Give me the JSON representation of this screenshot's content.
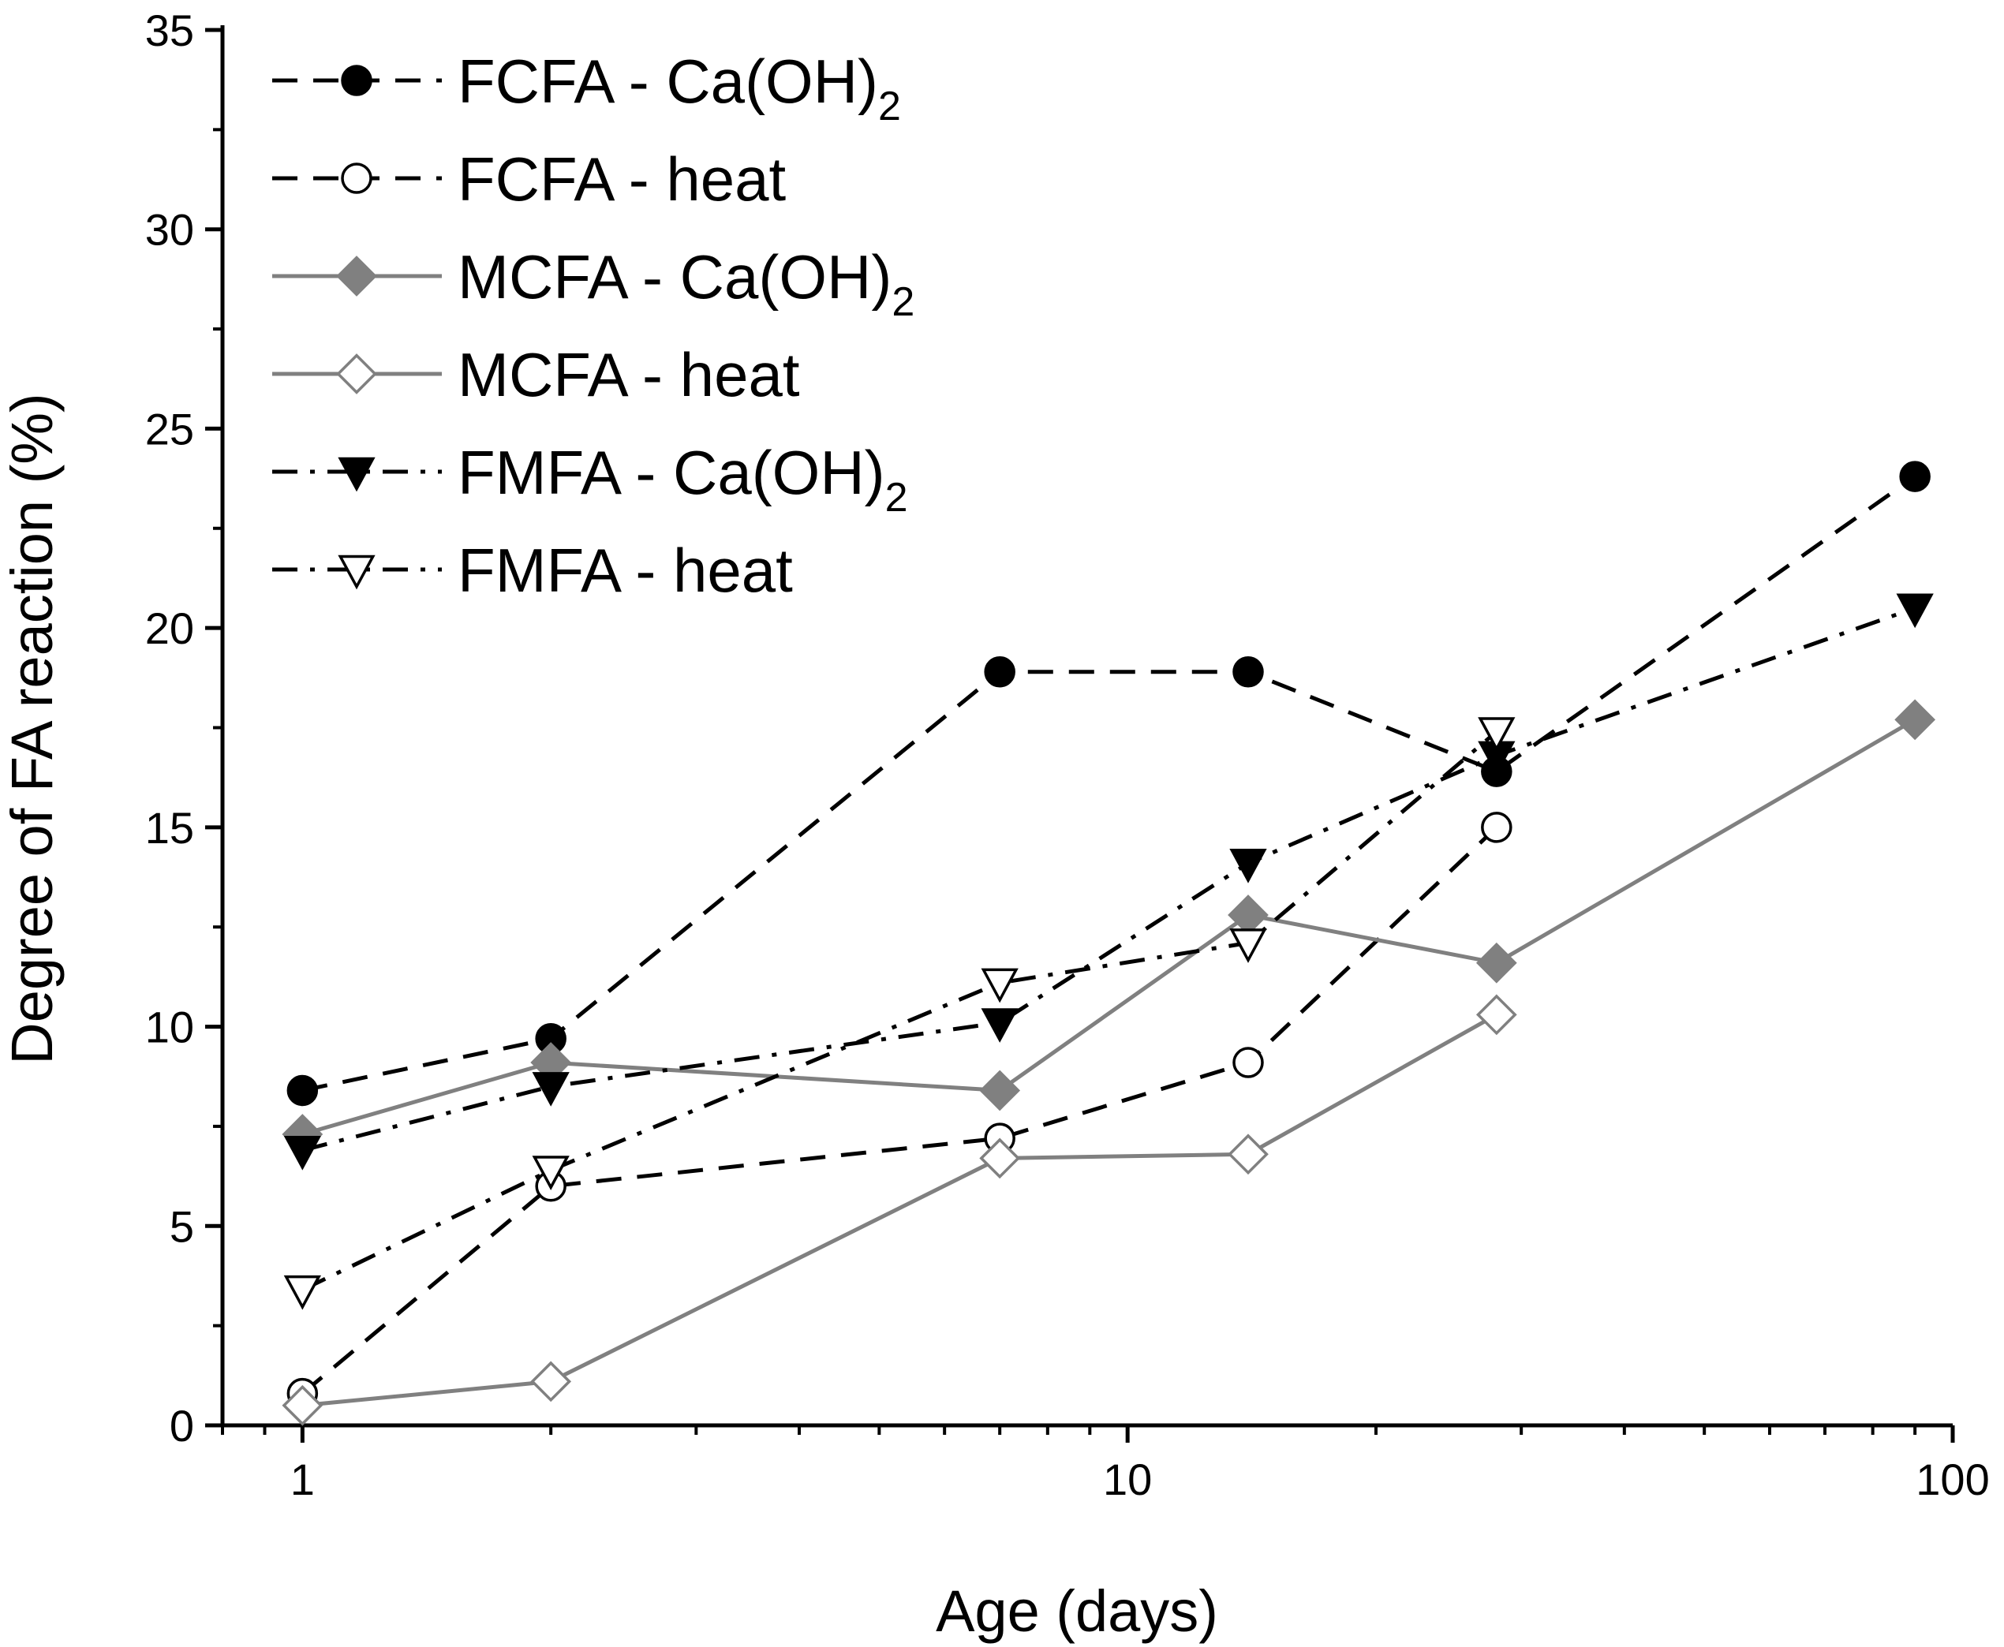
{
  "chart_data": {
    "type": "line",
    "title": "",
    "xlabel": "Age (days)",
    "ylabel": "Degree of FA reaction (%)",
    "xscale": "log",
    "xlim": [
      0.8,
      100
    ],
    "ylim": [
      0,
      35
    ],
    "xticks": [
      1,
      10,
      100
    ],
    "xtick_labels": [
      "1",
      "10",
      "100"
    ],
    "yticks": [
      0,
      5,
      10,
      15,
      20,
      25,
      30,
      35
    ],
    "ytick_labels": [
      "0",
      "5",
      "10",
      "15",
      "20",
      "25",
      "30",
      "35"
    ],
    "grid": false,
    "legend_position": "top-left",
    "series": [
      {
        "name": "FCFA - Ca(OH)2",
        "label_main": "FCFA - Ca(OH)",
        "label_sub": "2",
        "color": "#000000",
        "line": "dashed",
        "marker": "circle",
        "filled": true,
        "x": [
          1,
          2,
          7,
          14,
          28,
          90
        ],
        "y": [
          8.4,
          9.7,
          18.9,
          18.9,
          16.4,
          23.8
        ]
      },
      {
        "name": "FCFA - heat",
        "label_main": "FCFA - heat",
        "label_sub": "",
        "color": "#000000",
        "line": "dashed",
        "marker": "circle",
        "filled": false,
        "x": [
          1,
          2,
          7,
          14,
          28
        ],
        "y": [
          0.8,
          6.0,
          7.2,
          9.1,
          15.0
        ]
      },
      {
        "name": "MCFA - Ca(OH)2",
        "label_main": "MCFA - Ca(OH)",
        "label_sub": "2",
        "color": "#808080",
        "line": "solid",
        "marker": "diamond",
        "filled": true,
        "x": [
          1,
          2,
          7,
          14,
          28,
          90
        ],
        "y": [
          7.3,
          9.1,
          8.4,
          12.8,
          11.6,
          17.7
        ]
      },
      {
        "name": "MCFA - heat",
        "label_main": "MCFA - heat",
        "label_sub": "",
        "color": "#808080",
        "line": "solid",
        "marker": "diamond",
        "filled": false,
        "x": [
          1,
          2,
          7,
          14,
          28
        ],
        "y": [
          0.5,
          1.1,
          6.7,
          6.8,
          10.3
        ]
      },
      {
        "name": "FMFA - Ca(OH)2",
        "label_main": "FMFA - Ca(OH)",
        "label_sub": "2",
        "color": "#000000",
        "line": "dashdot",
        "marker": "triangle-down",
        "filled": true,
        "x": [
          1,
          2,
          7,
          14,
          28,
          90
        ],
        "y": [
          6.9,
          8.5,
          10.1,
          14.1,
          16.8,
          20.5
        ]
      },
      {
        "name": "FMFA - heat",
        "label_main": "FMFA - heat",
        "label_sub": "",
        "color": "#000000",
        "line": "dashdot",
        "marker": "triangle-down",
        "filled": false,
        "x": [
          1,
          2,
          7,
          14,
          28
        ],
        "y": [
          3.4,
          6.4,
          11.1,
          12.1,
          17.4
        ]
      }
    ]
  }
}
